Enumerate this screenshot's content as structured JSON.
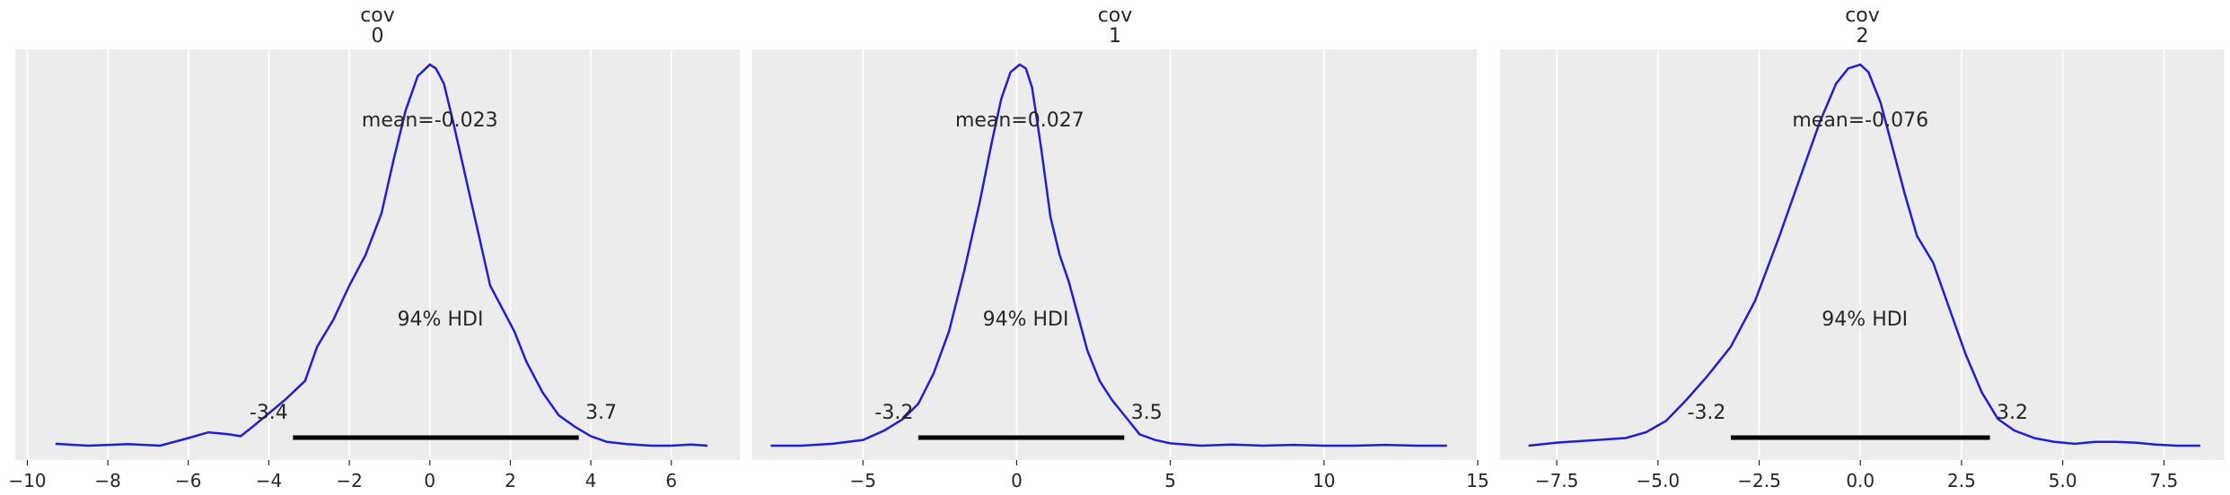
{
  "chart_data": [
    {
      "type": "line",
      "title_lines": [
        "cov",
        "0"
      ],
      "xlim": [
        -10.3,
        7.7
      ],
      "ylim": [
        0,
        1
      ],
      "xticks": [
        -10,
        -8,
        -6,
        -4,
        -2,
        0,
        2,
        4,
        6
      ],
      "xtick_labels": [
        "−10",
        "−8",
        "−6",
        "−4",
        "−2",
        "0",
        "2",
        "4",
        "6"
      ],
      "grid": "x",
      "color": "#1f1fd6",
      "mean_label": "mean=-0.023",
      "hdi_label": "94% HDI",
      "hdi": [
        -3.4,
        3.7
      ],
      "hdi_labels": [
        "-3.4",
        "3.7"
      ],
      "x": [
        -9.3,
        -8.5,
        -7.5,
        -6.7,
        -6.0,
        -5.5,
        -5.0,
        -4.7,
        -4.4,
        -4.0,
        -3.6,
        -3.1,
        -2.8,
        -2.4,
        -2.0,
        -1.6,
        -1.2,
        -0.9,
        -0.6,
        -0.3,
        -0.1,
        0.0,
        0.15,
        0.35,
        0.6,
        0.9,
        1.2,
        1.5,
        1.8,
        2.1,
        2.4,
        2.8,
        3.2,
        3.6,
        4.0,
        4.4,
        4.9,
        5.5,
        6.0,
        6.5,
        6.9
      ],
      "y": [
        0.005,
        0.0,
        0.004,
        0.0,
        0.02,
        0.035,
        0.03,
        0.025,
        0.05,
        0.085,
        0.12,
        0.17,
        0.26,
        0.33,
        0.42,
        0.5,
        0.61,
        0.75,
        0.88,
        0.97,
        0.99,
        1.0,
        0.99,
        0.95,
        0.84,
        0.7,
        0.56,
        0.42,
        0.36,
        0.3,
        0.22,
        0.14,
        0.08,
        0.05,
        0.025,
        0.01,
        0.004,
        0.0,
        0.0,
        0.003,
        0.0
      ]
    },
    {
      "type": "line",
      "title_lines": [
        "cov",
        "1"
      ],
      "xlim": [
        -8.6,
        15.0
      ],
      "ylim": [
        0,
        1
      ],
      "xticks": [
        -5,
        0,
        5,
        10,
        15
      ],
      "xtick_labels": [
        "−5",
        "0",
        "5",
        "10",
        "15"
      ],
      "grid": "x",
      "color": "#1f1fd6",
      "mean_label": "mean=0.027",
      "hdi_label": "94% HDI",
      "hdi": [
        -3.2,
        3.5
      ],
      "hdi_labels": [
        "-3.2",
        "3.5"
      ],
      "x": [
        -8.0,
        -7.0,
        -6.0,
        -5.0,
        -4.3,
        -3.7,
        -3.2,
        -2.7,
        -2.2,
        -1.7,
        -1.2,
        -0.8,
        -0.5,
        -0.2,
        0.1,
        0.3,
        0.5,
        0.8,
        1.1,
        1.4,
        1.7,
        2.0,
        2.3,
        2.7,
        3.1,
        3.5,
        4.0,
        4.5,
        5.0,
        6.0,
        7.0,
        8.0,
        9.0,
        10.0,
        11.0,
        12.0,
        13.0,
        14.0
      ],
      "y": [
        0.0,
        0.0,
        0.005,
        0.015,
        0.04,
        0.07,
        0.11,
        0.19,
        0.3,
        0.46,
        0.64,
        0.8,
        0.91,
        0.98,
        1.0,
        0.99,
        0.94,
        0.78,
        0.6,
        0.5,
        0.43,
        0.34,
        0.25,
        0.17,
        0.12,
        0.08,
        0.03,
        0.015,
        0.006,
        0.0,
        0.003,
        0.0,
        0.002,
        0.0,
        0.0,
        0.002,
        0.0,
        0.0
      ]
    },
    {
      "type": "line",
      "title_lines": [
        "cov",
        "2"
      ],
      "xlim": [
        -8.9,
        9.0
      ],
      "ylim": [
        0,
        1
      ],
      "xticks": [
        -7.5,
        -5.0,
        -2.5,
        0.0,
        2.5,
        5.0,
        7.5
      ],
      "xtick_labels": [
        "−7.5",
        "−5.0",
        "−2.5",
        "0.0",
        "2.5",
        "5.0",
        "7.5"
      ],
      "grid": "x",
      "color": "#1f1fd6",
      "mean_label": "mean=-0.076",
      "hdi_label": "94% HDI",
      "hdi": [
        -3.2,
        3.2
      ],
      "hdi_labels": [
        "-3.2",
        "3.2"
      ],
      "x": [
        -8.2,
        -7.5,
        -6.5,
        -5.8,
        -5.3,
        -4.8,
        -4.3,
        -3.8,
        -3.2,
        -2.6,
        -2.0,
        -1.5,
        -1.0,
        -0.6,
        -0.3,
        0.0,
        0.2,
        0.5,
        0.8,
        1.1,
        1.4,
        1.8,
        2.2,
        2.6,
        3.0,
        3.4,
        3.8,
        4.3,
        4.8,
        5.3,
        5.8,
        6.3,
        6.8,
        7.3,
        7.8,
        8.4
      ],
      "y": [
        0.0,
        0.008,
        0.015,
        0.02,
        0.035,
        0.065,
        0.12,
        0.18,
        0.26,
        0.38,
        0.55,
        0.7,
        0.85,
        0.95,
        0.99,
        1.0,
        0.98,
        0.9,
        0.78,
        0.66,
        0.55,
        0.48,
        0.36,
        0.24,
        0.14,
        0.07,
        0.04,
        0.02,
        0.01,
        0.005,
        0.01,
        0.01,
        0.008,
        0.003,
        0.0,
        0.0
      ]
    }
  ]
}
